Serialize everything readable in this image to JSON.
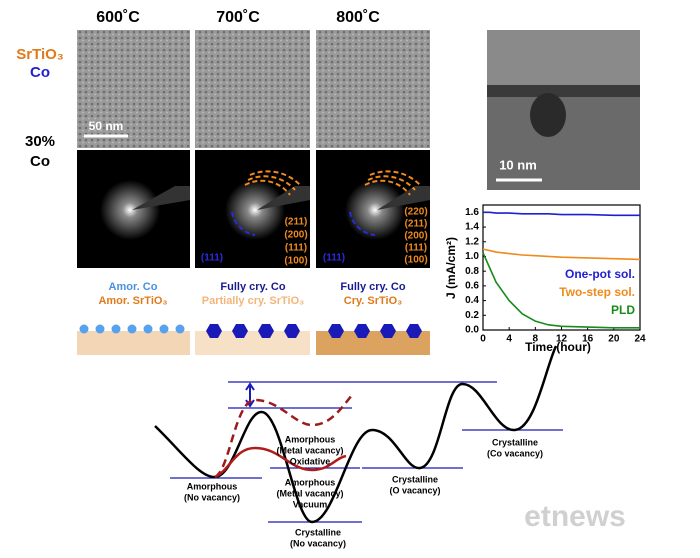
{
  "header": {
    "temperatures": [
      "600˚C",
      "700˚C",
      "800˚C"
    ]
  },
  "row_labels": {
    "material": [
      "SrTiO₃",
      "Co"
    ],
    "composition": [
      "30%",
      "Co"
    ]
  },
  "scale_bars": [
    "50 nm",
    "10 nm"
  ],
  "diffraction": {
    "panel_700": {
      "orange": [
        "(211)",
        "(200)",
        "(111)",
        "(100)"
      ],
      "blue": "(111)"
    },
    "panel_800": {
      "orange": [
        "(220)",
        "(211)",
        "(200)",
        "(111)",
        "(100)"
      ],
      "blue": "(111)"
    }
  },
  "schematics": [
    {
      "co": "Amor. Co",
      "srtio3": "Amor. SrTiO₃"
    },
    {
      "co": "Fully cry. Co",
      "srtio3": "Partially cry. SrTiO₃"
    },
    {
      "co": "Fully cry. Co",
      "srtio3": "Cry. SrTiO₃"
    }
  ],
  "energy_states": [
    {
      "lines": [
        "Amorphous",
        "(No vacancy)"
      ]
    },
    {
      "lines": [
        "Amorphous",
        "(Metal vacancy)",
        "Oxidative"
      ]
    },
    {
      "lines": [
        "Amorphous",
        "(Metal vacancy)",
        "Vacuum"
      ]
    },
    {
      "lines": [
        "Crystalline",
        "(No vacancy)"
      ]
    },
    {
      "lines": [
        "Crystalline",
        "(O vacancy)"
      ]
    },
    {
      "lines": [
        "Crystalline",
        "(Co vacancy)"
      ]
    }
  ],
  "watermark": "etnews",
  "chart_data": {
    "type": "line",
    "x_label": "Time (hour)",
    "y_label": "J (mA/cm²)",
    "x": [
      0,
      1,
      2,
      4,
      6,
      8,
      10,
      12,
      16,
      20,
      24
    ],
    "series": [
      {
        "name": "One-pot sol.",
        "color": "#1f1fd0",
        "values": [
          1.6,
          1.6,
          1.59,
          1.59,
          1.58,
          1.58,
          1.58,
          1.57,
          1.57,
          1.56,
          1.56
        ]
      },
      {
        "name": "Two-step sol.",
        "color": "#f08a1c",
        "values": [
          1.1,
          1.08,
          1.06,
          1.04,
          1.02,
          1.01,
          1.0,
          0.99,
          0.98,
          0.97,
          0.96
        ]
      },
      {
        "name": "PLD",
        "color": "#1a8a1a",
        "values": [
          1.05,
          0.85,
          0.65,
          0.4,
          0.22,
          0.12,
          0.07,
          0.05,
          0.04,
          0.03,
          0.03
        ]
      }
    ],
    "xlim": [
      0,
      24
    ],
    "xticks": [
      0,
      4,
      8,
      12,
      16,
      20,
      24
    ],
    "ylim": [
      0,
      1.7
    ],
    "yticks": [
      {
        "value": 0,
        "label": "0.0"
      },
      {
        "value": 0.2,
        "label": "0.2"
      },
      {
        "value": 0.4,
        "label": "0.4"
      },
      {
        "value": 0.6,
        "label": "0.6"
      },
      {
        "value": 0.8,
        "label": "0.8"
      },
      {
        "value": 1,
        "label": "1.0"
      },
      {
        "value": 1.2,
        "label": "1.2"
      },
      {
        "value": 1.4,
        "label": "1.4"
      },
      {
        "value": 1.6,
        "label": "1.6"
      }
    ]
  }
}
